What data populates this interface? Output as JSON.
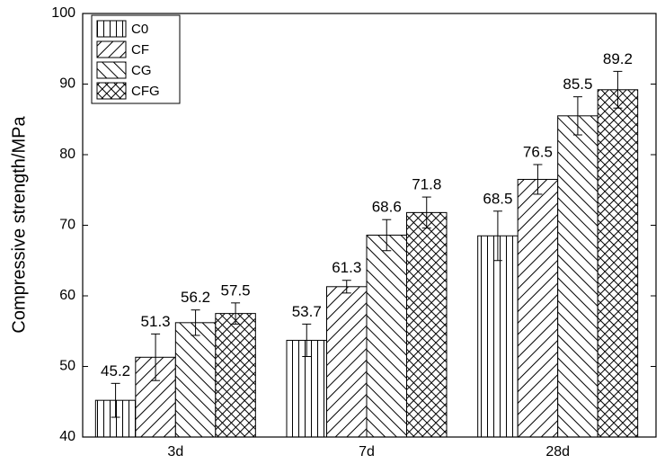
{
  "chart_data": {
    "type": "bar",
    "y_label": "Compressive strength/MPa",
    "categories": [
      "3d",
      "7d",
      "28d"
    ],
    "series": [
      {
        "name": "C0",
        "pattern": "vertical",
        "color": "#000000",
        "values": [
          45.2,
          53.7,
          68.5
        ],
        "errors": [
          2.4,
          2.3,
          3.5
        ]
      },
      {
        "name": "CF",
        "pattern": "forward",
        "color": "#000000",
        "values": [
          51.3,
          61.3,
          76.5
        ],
        "errors": [
          3.3,
          0.9,
          2.1
        ]
      },
      {
        "name": "CG",
        "pattern": "backward",
        "color": "#000000",
        "values": [
          56.2,
          68.6,
          85.5
        ],
        "errors": [
          1.8,
          2.2,
          2.7
        ]
      },
      {
        "name": "CFG",
        "pattern": "cross",
        "color": "#000000",
        "values": [
          57.5,
          71.8,
          89.2
        ],
        "errors": [
          1.5,
          2.2,
          2.6
        ]
      }
    ],
    "ylim": [
      40,
      100
    ],
    "yticks": [
      40,
      50,
      60,
      70,
      80,
      90,
      100
    ],
    "legend": "upper-left"
  }
}
